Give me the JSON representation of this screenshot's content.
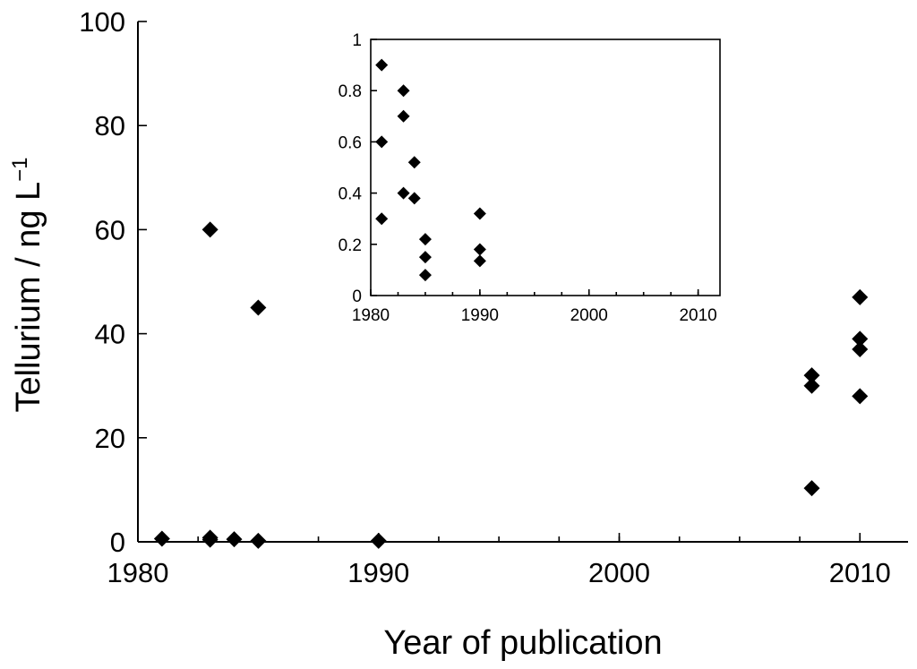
{
  "chart_data": [
    {
      "type": "scatter",
      "name": "main",
      "xlabel": "Year of publication",
      "ylabel": "Tellurium / ng L",
      "ylabel_superscript": "−1",
      "xlim": [
        1980,
        2012
      ],
      "ylim": [
        0,
        100
      ],
      "x_ticks": [
        1980,
        1990,
        2000,
        2010
      ],
      "y_ticks": [
        0,
        20,
        40,
        60,
        80,
        100
      ],
      "marker": "diamond",
      "marker_color": "#000000",
      "grid": false,
      "points": [
        {
          "x": 1981,
          "y": 0.6
        },
        {
          "x": 1983,
          "y": 60
        },
        {
          "x": 1983,
          "y": 0.8
        },
        {
          "x": 1983,
          "y": 0.4
        },
        {
          "x": 1984,
          "y": 0.5
        },
        {
          "x": 1985,
          "y": 45
        },
        {
          "x": 1985,
          "y": 0.2
        },
        {
          "x": 1990,
          "y": 0.2
        },
        {
          "x": 2008,
          "y": 32
        },
        {
          "x": 2008,
          "y": 30
        },
        {
          "x": 2008,
          "y": 10.3
        },
        {
          "x": 2010,
          "y": 47
        },
        {
          "x": 2010,
          "y": 39
        },
        {
          "x": 2010,
          "y": 37
        },
        {
          "x": 2010,
          "y": 28
        }
      ]
    },
    {
      "type": "scatter",
      "name": "inset",
      "xlim": [
        1980,
        2012
      ],
      "ylim": [
        0,
        1
      ],
      "x_ticks": [
        1980,
        1990,
        2000,
        2010
      ],
      "y_ticks": [
        0,
        0.2,
        0.4,
        0.6,
        0.8,
        1
      ],
      "y_tick_labels": [
        "0",
        "0.2",
        "0.4",
        "0.6",
        "0.8",
        "1"
      ],
      "marker": "diamond",
      "marker_color": "#000000",
      "grid": false,
      "points": [
        {
          "x": 1981,
          "y": 0.9
        },
        {
          "x": 1981,
          "y": 0.6
        },
        {
          "x": 1981,
          "y": 0.3
        },
        {
          "x": 1983,
          "y": 0.8
        },
        {
          "x": 1983,
          "y": 0.7
        },
        {
          "x": 1983,
          "y": 0.4
        },
        {
          "x": 1984,
          "y": 0.52
        },
        {
          "x": 1984,
          "y": 0.38
        },
        {
          "x": 1985,
          "y": 0.22
        },
        {
          "x": 1985,
          "y": 0.15
        },
        {
          "x": 1985,
          "y": 0.08
        },
        {
          "x": 1990,
          "y": 0.32
        },
        {
          "x": 1990,
          "y": 0.18
        },
        {
          "x": 1990,
          "y": 0.135
        }
      ]
    }
  ]
}
